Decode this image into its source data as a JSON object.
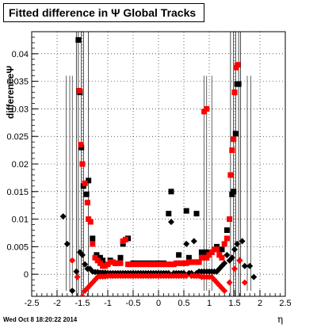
{
  "title": "Fitted difference in  Ψ   Global Tracks",
  "ylabel": "differenceΨ",
  "xlabel": "η",
  "timestamp": "Wed Oct  8 18:20:22 2014",
  "colors": {
    "series_black": "#000000",
    "series_red": "#ff0000",
    "grid": "#000000"
  },
  "chart_data": {
    "type": "scatter",
    "title": "Fitted difference in  Ψ   Global Tracks",
    "xlabel": "η",
    "ylabel": "differenceΨ",
    "xlim": [
      -2.5,
      2.5
    ],
    "ylim": [
      -0.004,
      0.044
    ],
    "grid": true,
    "x_ticks": [
      "-2.5",
      "-2",
      "-1.5",
      "-1",
      "-0.5",
      "0",
      "0.5",
      "1",
      "1.5",
      "2",
      "2.5"
    ],
    "y_ticks": [
      "0",
      "0.005",
      "0.01",
      "0.015",
      "0.02",
      "0.025",
      "0.03",
      "0.035",
      "0.04"
    ],
    "series": [
      {
        "marker": "square",
        "color": "#000000",
        "points": [
          [
            -1.58,
            0.0425
          ],
          [
            -1.55,
            0.033
          ],
          [
            -1.52,
            0.023
          ],
          [
            -1.48,
            0.016
          ],
          [
            -1.42,
            0.0145
          ],
          [
            -1.38,
            0.017
          ],
          [
            -1.3,
            0.0065
          ],
          [
            -1.22,
            0.0035
          ],
          [
            -1.15,
            0.003
          ],
          [
            -1.1,
            0.0025
          ],
          [
            -0.95,
            0.0025
          ],
          [
            -0.85,
            0.002
          ],
          [
            -0.75,
            0.003
          ],
          [
            -0.7,
            0.0055
          ],
          [
            -0.6,
            0.0065
          ],
          [
            -0.5,
            0.002
          ],
          [
            -0.4,
            0.002
          ],
          [
            -0.3,
            0.002
          ],
          [
            -0.2,
            0.002
          ],
          [
            -0.1,
            0.002
          ],
          [
            0.0,
            0.002
          ],
          [
            0.1,
            0.002
          ],
          [
            0.2,
            0.011
          ],
          [
            0.25,
            0.015
          ],
          [
            0.4,
            0.0035
          ],
          [
            0.55,
            0.0115
          ],
          [
            0.6,
            0.003
          ],
          [
            0.75,
            0.011
          ],
          [
            0.85,
            0.004
          ],
          [
            0.95,
            0.004
          ],
          [
            1.05,
            0.004
          ],
          [
            1.15,
            0.005
          ],
          [
            1.25,
            0.0045
          ],
          [
            1.35,
            0.008
          ],
          [
            1.45,
            0.0145
          ],
          [
            1.48,
            0.015
          ],
          [
            1.52,
            0.0255
          ],
          [
            1.55,
            0.0345
          ],
          [
            1.58,
            0.0345
          ]
        ]
      },
      {
        "marker": "diamond",
        "color": "#000000",
        "points": [
          [
            -1.88,
            0.0105
          ],
          [
            -1.8,
            0.0055
          ],
          [
            -1.7,
            -0.003
          ],
          [
            -1.62,
            0.0005
          ],
          [
            -1.55,
            0.004
          ],
          [
            -1.5,
            0.0035
          ],
          [
            -1.45,
            0.0018
          ],
          [
            -1.4,
            0.001
          ],
          [
            -1.35,
            0.001
          ],
          [
            -1.3,
            0.0005
          ],
          [
            -1.25,
            0.0004
          ],
          [
            -1.2,
            0.0004
          ],
          [
            -1.15,
            0.0003
          ],
          [
            -1.1,
            0.0003
          ],
          [
            -1.05,
            0.0003
          ],
          [
            -1.0,
            0.0002
          ],
          [
            -0.95,
            0.0002
          ],
          [
            -0.9,
            0.0002
          ],
          [
            -0.85,
            0.0002
          ],
          [
            -0.8,
            0.0002
          ],
          [
            -0.75,
            0.0002
          ],
          [
            -0.7,
            0.0002
          ],
          [
            -0.65,
            0.0002
          ],
          [
            -0.6,
            0.0002
          ],
          [
            -0.55,
            0.0002
          ],
          [
            -0.5,
            0.0002
          ],
          [
            -0.45,
            0.0002
          ],
          [
            -0.4,
            0.0002
          ],
          [
            -0.35,
            0.0002
          ],
          [
            -0.3,
            0.0002
          ],
          [
            -0.25,
            0.0002
          ],
          [
            -0.2,
            0.0002
          ],
          [
            -0.15,
            0.0002
          ],
          [
            -0.1,
            0.0002
          ],
          [
            -0.05,
            0.0002
          ],
          [
            0.0,
            0.0002
          ],
          [
            0.05,
            0.0002
          ],
          [
            0.1,
            0.0002
          ],
          [
            0.15,
            0.0002
          ],
          [
            0.2,
            0.0002
          ],
          [
            0.25,
            0.0095
          ],
          [
            0.3,
            0.0002
          ],
          [
            0.35,
            0.0002
          ],
          [
            0.4,
            0.0002
          ],
          [
            0.45,
            0.0002
          ],
          [
            0.5,
            0.0002
          ],
          [
            0.55,
            0.0055
          ],
          [
            0.6,
            0.0002
          ],
          [
            0.65,
            0.0002
          ],
          [
            0.7,
            0.006
          ],
          [
            0.75,
            0.0002
          ],
          [
            0.8,
            0.0005
          ],
          [
            0.85,
            0.0005
          ],
          [
            0.9,
            0.0005
          ],
          [
            0.95,
            0.0005
          ],
          [
            1.0,
            0.0005
          ],
          [
            1.05,
            0.0005
          ],
          [
            1.1,
            0.0005
          ],
          [
            1.15,
            0.0005
          ],
          [
            1.2,
            0.001
          ],
          [
            1.25,
            0.0015
          ],
          [
            1.3,
            0.002
          ],
          [
            1.35,
            0.0035
          ],
          [
            1.4,
            0.0025
          ],
          [
            1.45,
            0.003
          ],
          [
            1.5,
            0.0045
          ],
          [
            1.55,
            0.0055
          ],
          [
            1.6,
            0.0025
          ],
          [
            1.65,
            0.006
          ],
          [
            1.7,
            0.0015
          ],
          [
            1.8,
            0.0015
          ],
          [
            1.88,
            -0.0005
          ]
        ]
      },
      {
        "marker": "square",
        "color": "#ff0000",
        "points": [
          [
            -1.56,
            0.0333
          ],
          [
            -1.53,
            0.0235
          ],
          [
            -1.5,
            0.02
          ],
          [
            -1.45,
            0.0165
          ],
          [
            -1.4,
            0.013
          ],
          [
            -1.38,
            0.01
          ],
          [
            -1.34,
            0.0095
          ],
          [
            -1.3,
            0.0055
          ],
          [
            -1.25,
            0.003
          ],
          [
            -1.2,
            0.0025
          ],
          [
            -1.15,
            0.002
          ],
          [
            -1.1,
            0.0015
          ],
          [
            -1.05,
            0.0015
          ],
          [
            -1.0,
            0.0018
          ],
          [
            -0.95,
            0.0022
          ],
          [
            -0.9,
            0.0022
          ],
          [
            -0.85,
            0.002
          ],
          [
            -0.8,
            0.002
          ],
          [
            -0.75,
            0.002
          ],
          [
            -0.7,
            0.006
          ],
          [
            -0.65,
            0.0063
          ],
          [
            -0.6,
            0.0018
          ],
          [
            -0.55,
            0.0018
          ],
          [
            -0.5,
            0.0018
          ],
          [
            -0.45,
            0.0018
          ],
          [
            -0.4,
            0.0018
          ],
          [
            -0.35,
            0.0018
          ],
          [
            -0.3,
            0.0018
          ],
          [
            -0.25,
            0.0018
          ],
          [
            -0.2,
            0.0018
          ],
          [
            -0.15,
            0.0018
          ],
          [
            -0.1,
            0.0018
          ],
          [
            -0.05,
            0.0018
          ],
          [
            0.0,
            0.0018
          ],
          [
            0.05,
            0.0018
          ],
          [
            0.1,
            0.0018
          ],
          [
            0.15,
            0.0018
          ],
          [
            0.2,
            0.0018
          ],
          [
            0.25,
            0.0018
          ],
          [
            0.3,
            0.0018
          ],
          [
            0.35,
            0.002
          ],
          [
            0.4,
            0.002
          ],
          [
            0.45,
            0.002
          ],
          [
            0.5,
            0.002
          ],
          [
            0.55,
            0.002
          ],
          [
            0.6,
            0.0022
          ],
          [
            0.65,
            0.0022
          ],
          [
            0.7,
            0.0022
          ],
          [
            0.75,
            0.0022
          ],
          [
            0.8,
            0.0022
          ],
          [
            0.85,
            0.003
          ],
          [
            0.9,
            0.003
          ],
          [
            0.95,
            0.003
          ],
          [
            1.0,
            0.0035
          ],
          [
            1.05,
            0.004
          ],
          [
            1.1,
            0.0045
          ],
          [
            1.15,
            0.0045
          ],
          [
            1.2,
            0.0035
          ],
          [
            1.25,
            0.003
          ],
          [
            1.3,
            0.0055
          ],
          [
            1.35,
            0.0065
          ],
          [
            1.4,
            0.01
          ],
          [
            1.42,
            0.018
          ],
          [
            1.45,
            0.0225
          ],
          [
            1.48,
            0.0245
          ],
          [
            1.5,
            0.033
          ],
          [
            1.53,
            0.0375
          ],
          [
            1.56,
            0.038
          ],
          [
            0.9,
            0.0295
          ],
          [
            0.95,
            0.03
          ]
        ]
      },
      {
        "marker": "diamond",
        "color": "#ff0000",
        "points": [
          [
            -1.7,
            0.0025
          ],
          [
            -1.6,
            -0.0005
          ],
          [
            -1.5,
            -0.004
          ],
          [
            -1.45,
            -0.003
          ],
          [
            -1.4,
            -0.0025
          ],
          [
            -1.35,
            -0.002
          ],
          [
            -1.3,
            -0.0015
          ],
          [
            -1.25,
            -0.001
          ],
          [
            -1.2,
            -0.0005
          ],
          [
            -1.15,
            -0.0004
          ],
          [
            -1.1,
            -0.0004
          ],
          [
            -1.05,
            -0.0004
          ],
          [
            -1.0,
            -0.0003
          ],
          [
            -0.95,
            -0.0003
          ],
          [
            -0.9,
            -0.0003
          ],
          [
            -0.85,
            -0.0003
          ],
          [
            -0.8,
            -0.0003
          ],
          [
            -0.75,
            -0.0003
          ],
          [
            -0.7,
            -0.0003
          ],
          [
            -0.65,
            -0.0003
          ],
          [
            -0.6,
            -0.0003
          ],
          [
            -0.55,
            -0.0003
          ],
          [
            -0.5,
            -0.0003
          ],
          [
            -0.45,
            -0.0003
          ],
          [
            -0.4,
            -0.0003
          ],
          [
            -0.35,
            -0.0003
          ],
          [
            -0.3,
            -0.0003
          ],
          [
            -0.25,
            -0.0003
          ],
          [
            -0.2,
            -0.0003
          ],
          [
            -0.15,
            -0.0003
          ],
          [
            -0.1,
            -0.0003
          ],
          [
            -0.05,
            -0.0003
          ],
          [
            0.0,
            -0.0003
          ],
          [
            0.05,
            -0.0003
          ],
          [
            0.1,
            -0.0003
          ],
          [
            0.15,
            -0.0003
          ],
          [
            0.2,
            -0.0003
          ],
          [
            0.25,
            -0.0003
          ],
          [
            0.3,
            -0.0003
          ],
          [
            0.35,
            -0.0003
          ],
          [
            0.4,
            -0.0003
          ],
          [
            0.45,
            -0.0003
          ],
          [
            0.5,
            -0.0003
          ],
          [
            0.55,
            -0.0003
          ],
          [
            0.58,
            -0.0045
          ],
          [
            0.65,
            -0.0003
          ],
          [
            0.7,
            -0.0003
          ],
          [
            0.75,
            -0.0003
          ],
          [
            0.8,
            -0.0003
          ],
          [
            0.85,
            -0.0005
          ],
          [
            0.9,
            -0.0005
          ],
          [
            0.95,
            -0.0005
          ],
          [
            1.0,
            -0.0005
          ],
          [
            1.05,
            -0.0005
          ],
          [
            1.1,
            -0.001
          ],
          [
            1.15,
            -0.0015
          ],
          [
            1.2,
            -0.002
          ],
          [
            1.25,
            -0.0025
          ],
          [
            1.3,
            -0.003
          ],
          [
            1.4,
            -0.0015
          ],
          [
            1.5,
            0.001
          ],
          [
            1.6,
            0.0025
          ],
          [
            1.7,
            -0.0015
          ]
        ]
      }
    ]
  }
}
